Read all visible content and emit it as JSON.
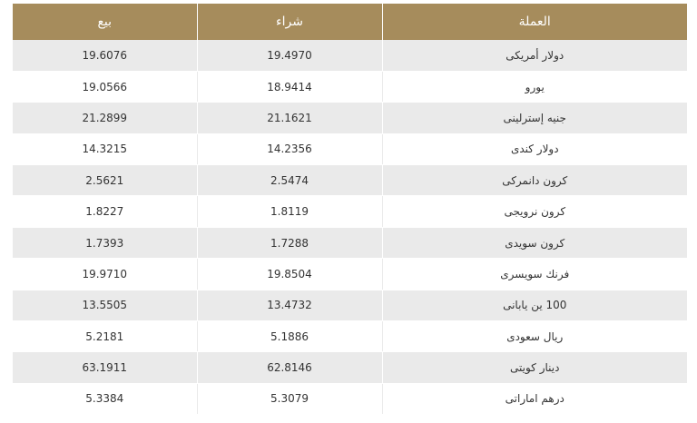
{
  "header": {
    "currency": "العملة",
    "buy": "شراء",
    "sell": "بيع"
  },
  "rows": [
    {
      "currency": "دولار أمريكى",
      "buy": "19.4970",
      "sell": "19.6076"
    },
    {
      "currency": "يورو",
      "buy": "18.9414",
      "sell": "19.0566"
    },
    {
      "currency": "جنيه إسترلينى",
      "buy": "21.1621",
      "sell": "21.2899"
    },
    {
      "currency": "دولار كندى",
      "buy": "14.2356",
      "sell": "14.3215"
    },
    {
      "currency": "كرون دانمركى",
      "buy": "2.5474",
      "sell": "2.5621"
    },
    {
      "currency": "كرون نرويجى",
      "buy": "1.8119",
      "sell": "1.8227"
    },
    {
      "currency": "كرون سويدى",
      "buy": "1.7288",
      "sell": "1.7393"
    },
    {
      "currency": "فرنك سويسرى",
      "buy": "19.8504",
      "sell": "19.9710"
    },
    {
      "currency": "100 ين يابانى",
      "buy": "13.4732",
      "sell": "13.5505"
    },
    {
      "currency": "ريال سعودى",
      "buy": "5.1886",
      "sell": "5.2181"
    },
    {
      "currency": "دينار كويتى",
      "buy": "62.8146",
      "sell": "63.1911"
    },
    {
      "currency": "درهم اماراتى",
      "buy": "5.3079",
      "sell": "5.3384"
    }
  ]
}
